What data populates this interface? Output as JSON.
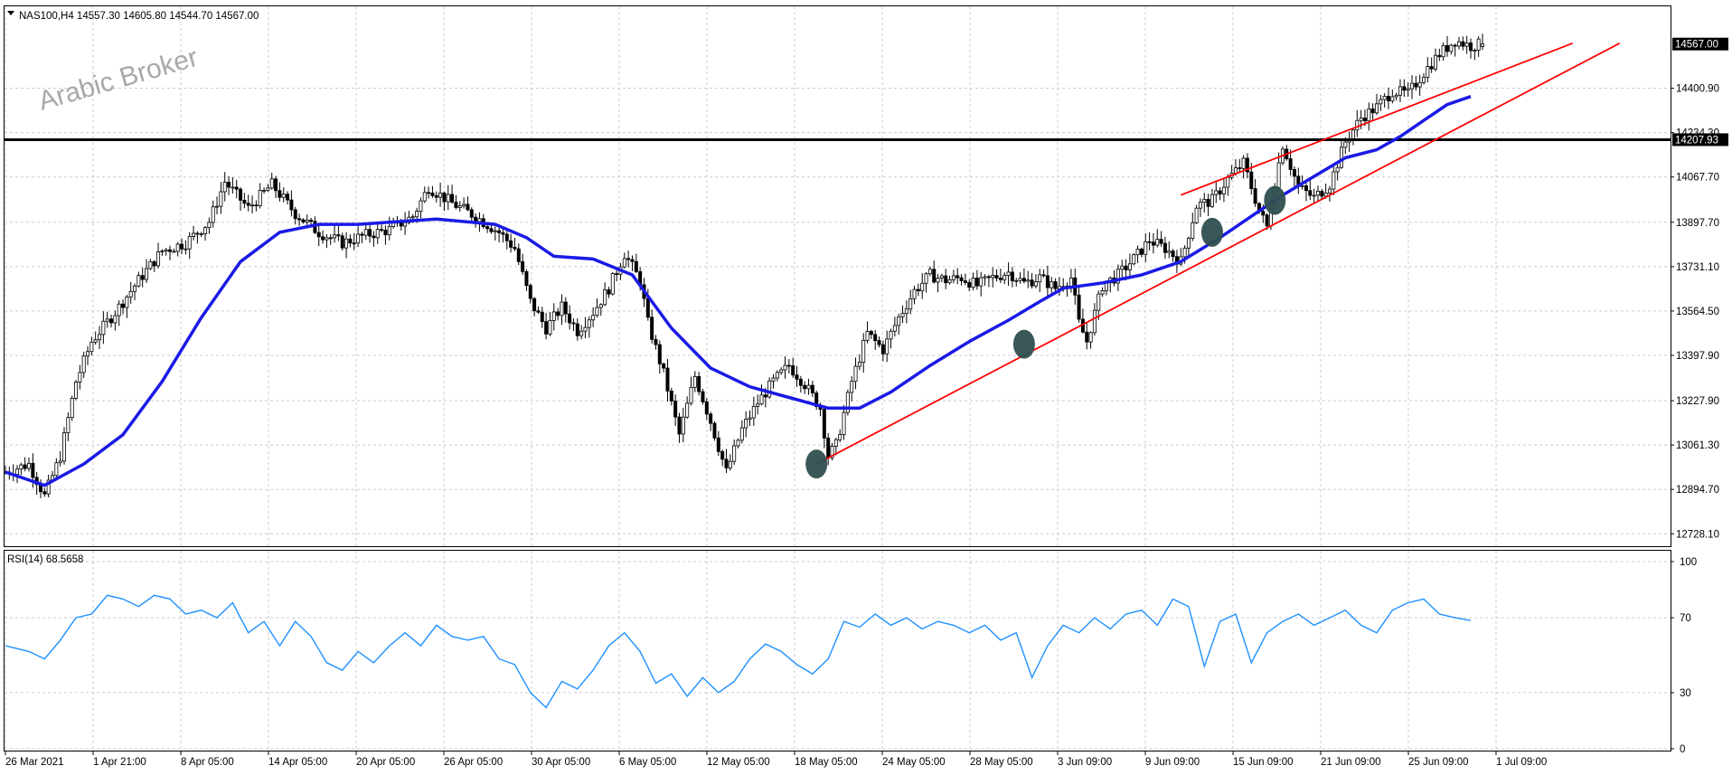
{
  "colors": {
    "candle": "#000000",
    "ma_line": "#1a1ae6",
    "trendline": "#ff0000",
    "horizontal_line": "#000000",
    "rsi_line": "#1e90ff",
    "grid": "#c8ccd2",
    "touch_marker": "#2f4f4f",
    "price_badge_bg": "#000000",
    "price_badge_text": "#ffffff"
  },
  "header": {
    "symbol_line": "NAS100,H4  14557.30 14605.80 14544.70 14567.00",
    "rsi_label": "RSI(14) 68.5658"
  },
  "watermark": "Arabic Broker",
  "badges": {
    "last_price": "14567.00",
    "hline_price": "14207.93"
  },
  "chart_data": [
    {
      "type": "candlestick",
      "symbol": "NAS100",
      "timeframe": "H4",
      "ohlc_last": {
        "open": 14557.3,
        "high": 14605.8,
        "low": 14544.7,
        "close": 14567.0
      },
      "y_ticks": [
        "14400.90",
        "14234.30",
        "14067.70",
        "13897.70",
        "13731.10",
        "13564.50",
        "13397.90",
        "13227.90",
        "13061.30",
        "12894.70",
        "12728.10"
      ],
      "y_tick_values": [
        14400.9,
        14234.3,
        14067.7,
        13897.7,
        13731.1,
        13564.5,
        13397.9,
        13227.9,
        13061.3,
        12894.7,
        12728.1
      ],
      "x_ticks": [
        "26 Mar 2021",
        "1 Apr 21:00",
        "8 Apr 05:00",
        "14 Apr 05:00",
        "20 Apr 05:00",
        "26 Apr 05:00",
        "30 Apr 05:00",
        "6 May 05:00",
        "12 May 05:00",
        "18 May 05:00",
        "24 May 05:00",
        "28 May 05:00",
        "3 Jun 09:00",
        "9 Jun 09:00",
        "15 Jun 09:00",
        "21 Jun 09:00",
        "25 Jun 09:00",
        "1 Jul 09:00"
      ],
      "close_path": [
        [
          0,
          12960
        ],
        [
          6,
          12990
        ],
        [
          10,
          12870
        ],
        [
          14,
          13020
        ],
        [
          18,
          13300
        ],
        [
          22,
          13450
        ],
        [
          28,
          13560
        ],
        [
          34,
          13680
        ],
        [
          40,
          13790
        ],
        [
          46,
          13820
        ],
        [
          52,
          13900
        ],
        [
          56,
          14050
        ],
        [
          62,
          13950
        ],
        [
          68,
          14040
        ],
        [
          74,
          13930
        ],
        [
          80,
          13860
        ],
        [
          86,
          13820
        ],
        [
          92,
          13850
        ],
        [
          98,
          13870
        ],
        [
          104,
          13920
        ],
        [
          108,
          14030
        ],
        [
          114,
          13970
        ],
        [
          120,
          13920
        ],
        [
          126,
          13860
        ],
        [
          130,
          13800
        ],
        [
          134,
          13600
        ],
        [
          138,
          13500
        ],
        [
          142,
          13580
        ],
        [
          146,
          13490
        ],
        [
          150,
          13560
        ],
        [
          154,
          13650
        ],
        [
          158,
          13780
        ],
        [
          162,
          13680
        ],
        [
          164,
          13520
        ],
        [
          168,
          13330
        ],
        [
          172,
          13100
        ],
        [
          176,
          13320
        ],
        [
          180,
          13150
        ],
        [
          184,
          12960
        ],
        [
          188,
          13120
        ],
        [
          192,
          13220
        ],
        [
          196,
          13300
        ],
        [
          200,
          13360
        ],
        [
          204,
          13290
        ],
        [
          208,
          13200
        ],
        [
          210,
          13020
        ],
        [
          212,
          13060
        ],
        [
          216,
          13300
        ],
        [
          220,
          13480
        ],
        [
          224,
          13420
        ],
        [
          228,
          13540
        ],
        [
          232,
          13640
        ],
        [
          236,
          13700
        ],
        [
          240,
          13680
        ],
        [
          244,
          13690
        ],
        [
          248,
          13660
        ],
        [
          252,
          13690
        ],
        [
          256,
          13710
        ],
        [
          260,
          13670
        ],
        [
          264,
          13690
        ],
        [
          268,
          13650
        ],
        [
          272,
          13690
        ],
        [
          274,
          13520
        ],
        [
          276,
          13450
        ],
        [
          280,
          13660
        ],
        [
          284,
          13700
        ],
        [
          288,
          13760
        ],
        [
          292,
          13830
        ],
        [
          296,
          13800
        ],
        [
          300,
          13750
        ],
        [
          304,
          13960
        ],
        [
          308,
          13980
        ],
        [
          312,
          14060
        ],
        [
          316,
          14120
        ],
        [
          320,
          13940
        ],
        [
          322,
          13880
        ],
        [
          324,
          14050
        ],
        [
          326,
          14190
        ],
        [
          330,
          14030
        ],
        [
          334,
          13990
        ],
        [
          338,
          14040
        ],
        [
          342,
          14200
        ],
        [
          346,
          14290
        ],
        [
          350,
          14330
        ],
        [
          354,
          14390
        ],
        [
          358,
          14380
        ],
        [
          362,
          14460
        ],
        [
          366,
          14530
        ],
        [
          370,
          14580
        ],
        [
          374,
          14560
        ],
        [
          377,
          14567
        ]
      ],
      "ma_line": [
        [
          0,
          12960
        ],
        [
          10,
          12910
        ],
        [
          20,
          12990
        ],
        [
          30,
          13100
        ],
        [
          40,
          13300
        ],
        [
          50,
          13540
        ],
        [
          60,
          13750
        ],
        [
          70,
          13860
        ],
        [
          80,
          13890
        ],
        [
          90,
          13890
        ],
        [
          100,
          13900
        ],
        [
          110,
          13910
        ],
        [
          125,
          13890
        ],
        [
          133,
          13840
        ],
        [
          140,
          13770
        ],
        [
          150,
          13760
        ],
        [
          160,
          13700
        ],
        [
          170,
          13500
        ],
        [
          180,
          13350
        ],
        [
          190,
          13280
        ],
        [
          200,
          13240
        ],
        [
          210,
          13200
        ],
        [
          218,
          13200
        ],
        [
          226,
          13260
        ],
        [
          236,
          13360
        ],
        [
          246,
          13450
        ],
        [
          256,
          13530
        ],
        [
          264,
          13600
        ],
        [
          270,
          13650
        ],
        [
          280,
          13670
        ],
        [
          290,
          13700
        ],
        [
          300,
          13750
        ],
        [
          310,
          13840
        ],
        [
          318,
          13920
        ],
        [
          326,
          14000
        ],
        [
          334,
          14070
        ],
        [
          342,
          14140
        ],
        [
          350,
          14170
        ],
        [
          356,
          14220
        ],
        [
          362,
          14280
        ],
        [
          368,
          14340
        ],
        [
          374,
          14370
        ]
      ],
      "horizontal_line": {
        "price": 14207.93
      },
      "trendlines": [
        {
          "from": [
            207,
            12990
          ],
          "to": [
            412,
            14570
          ]
        },
        {
          "from": [
            300,
            14000
          ],
          "to": [
            400,
            14570
          ]
        }
      ],
      "touch_points": [
        [
          207,
          12990
        ],
        [
          260,
          13440
        ],
        [
          308,
          13860
        ],
        [
          324,
          13980
        ]
      ]
    },
    {
      "type": "line",
      "name": "RSI(14)",
      "last_value": 68.5658,
      "ylim": [
        0,
        100
      ],
      "y_ticks": [
        "100",
        "70",
        "30",
        "0"
      ],
      "y_tick_values": [
        100,
        70,
        30,
        0
      ],
      "values_path": [
        [
          0,
          55
        ],
        [
          6,
          52
        ],
        [
          10,
          48
        ],
        [
          14,
          58
        ],
        [
          18,
          70
        ],
        [
          22,
          72
        ],
        [
          26,
          82
        ],
        [
          30,
          80
        ],
        [
          34,
          76
        ],
        [
          38,
          82
        ],
        [
          42,
          80
        ],
        [
          46,
          72
        ],
        [
          50,
          74
        ],
        [
          54,
          70
        ],
        [
          58,
          78
        ],
        [
          62,
          62
        ],
        [
          66,
          68
        ],
        [
          70,
          55
        ],
        [
          74,
          68
        ],
        [
          78,
          60
        ],
        [
          82,
          46
        ],
        [
          86,
          42
        ],
        [
          90,
          52
        ],
        [
          94,
          46
        ],
        [
          98,
          55
        ],
        [
          102,
          62
        ],
        [
          106,
          55
        ],
        [
          110,
          66
        ],
        [
          114,
          60
        ],
        [
          118,
          58
        ],
        [
          122,
          60
        ],
        [
          126,
          48
        ],
        [
          130,
          45
        ],
        [
          134,
          30
        ],
        [
          138,
          22
        ],
        [
          142,
          36
        ],
        [
          146,
          32
        ],
        [
          150,
          42
        ],
        [
          154,
          55
        ],
        [
          158,
          62
        ],
        [
          162,
          52
        ],
        [
          166,
          35
        ],
        [
          170,
          40
        ],
        [
          174,
          28
        ],
        [
          178,
          38
        ],
        [
          182,
          30
        ],
        [
          186,
          36
        ],
        [
          190,
          48
        ],
        [
          194,
          56
        ],
        [
          198,
          52
        ],
        [
          202,
          45
        ],
        [
          206,
          40
        ],
        [
          210,
          48
        ],
        [
          214,
          68
        ],
        [
          218,
          65
        ],
        [
          222,
          72
        ],
        [
          226,
          66
        ],
        [
          230,
          70
        ],
        [
          234,
          64
        ],
        [
          238,
          68
        ],
        [
          242,
          66
        ],
        [
          246,
          62
        ],
        [
          250,
          66
        ],
        [
          254,
          58
        ],
        [
          258,
          62
        ],
        [
          262,
          38
        ],
        [
          266,
          55
        ],
        [
          270,
          66
        ],
        [
          274,
          62
        ],
        [
          278,
          70
        ],
        [
          282,
          64
        ],
        [
          286,
          72
        ],
        [
          290,
          74
        ],
        [
          294,
          66
        ],
        [
          298,
          80
        ],
        [
          302,
          76
        ],
        [
          306,
          44
        ],
        [
          310,
          68
        ],
        [
          314,
          72
        ],
        [
          318,
          46
        ],
        [
          322,
          62
        ],
        [
          326,
          68
        ],
        [
          330,
          72
        ],
        [
          334,
          66
        ],
        [
          338,
          70
        ],
        [
          342,
          74
        ],
        [
          346,
          66
        ],
        [
          350,
          62
        ],
        [
          354,
          74
        ],
        [
          358,
          78
        ],
        [
          362,
          80
        ],
        [
          366,
          72
        ],
        [
          370,
          70
        ],
        [
          374,
          68.57
        ]
      ]
    }
  ]
}
